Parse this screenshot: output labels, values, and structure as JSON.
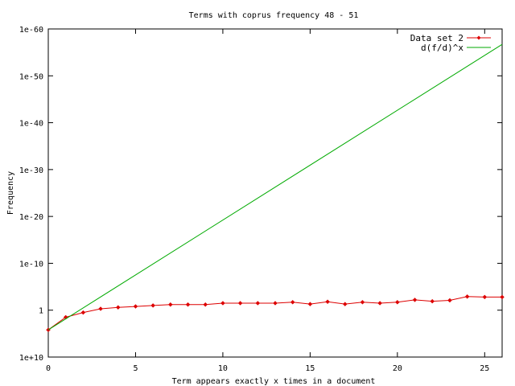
{
  "chart_data": {
    "type": "line",
    "title": "Terms with coprus frequency 48 - 51",
    "xlabel": "Term appears exactly x times in a document",
    "ylabel": "Frequency",
    "xlim": [
      0,
      26
    ],
    "ylim_log10": [
      -60,
      10
    ],
    "y_scale": "log",
    "grid": false,
    "legend_position": "top-right",
    "x_ticks": [
      0,
      5,
      10,
      15,
      20,
      25
    ],
    "x_tick_labels": [
      "0",
      "5",
      "10",
      "15",
      "20",
      "25"
    ],
    "y_ticks_log10": [
      10,
      0,
      -10,
      -20,
      -30,
      -40,
      -50,
      -60
    ],
    "y_tick_labels": [
      "1e+10",
      "1",
      "1e-10",
      "1e-20",
      "1e-30",
      "1e-40",
      "1e-50",
      "1e-60"
    ],
    "series": [
      {
        "name": "Data set 2",
        "color": "#dd0000",
        "marker": "diamond",
        "x": [
          0,
          1,
          2,
          3,
          4,
          5,
          6,
          7,
          8,
          9,
          10,
          11,
          12,
          13,
          14,
          15,
          16,
          17,
          18,
          19,
          20,
          21,
          22,
          23,
          24,
          25,
          26
        ],
        "log10_y": [
          4.2,
          1.5,
          0.5,
          -0.3,
          -0.6,
          -0.8,
          -1.0,
          -1.2,
          -1.2,
          -1.2,
          -1.5,
          -1.5,
          -1.5,
          -1.5,
          -1.7,
          -1.3,
          -1.8,
          -1.3,
          -1.7,
          -1.5,
          -1.7,
          -2.2,
          -1.9,
          -2.1,
          -2.9,
          -2.8,
          -2.8
        ]
      },
      {
        "name": "d(f/d)^x",
        "color": "#00aa00",
        "x": [
          0,
          26
        ],
        "log10_y": [
          4.2,
          -56.7
        ]
      }
    ]
  }
}
